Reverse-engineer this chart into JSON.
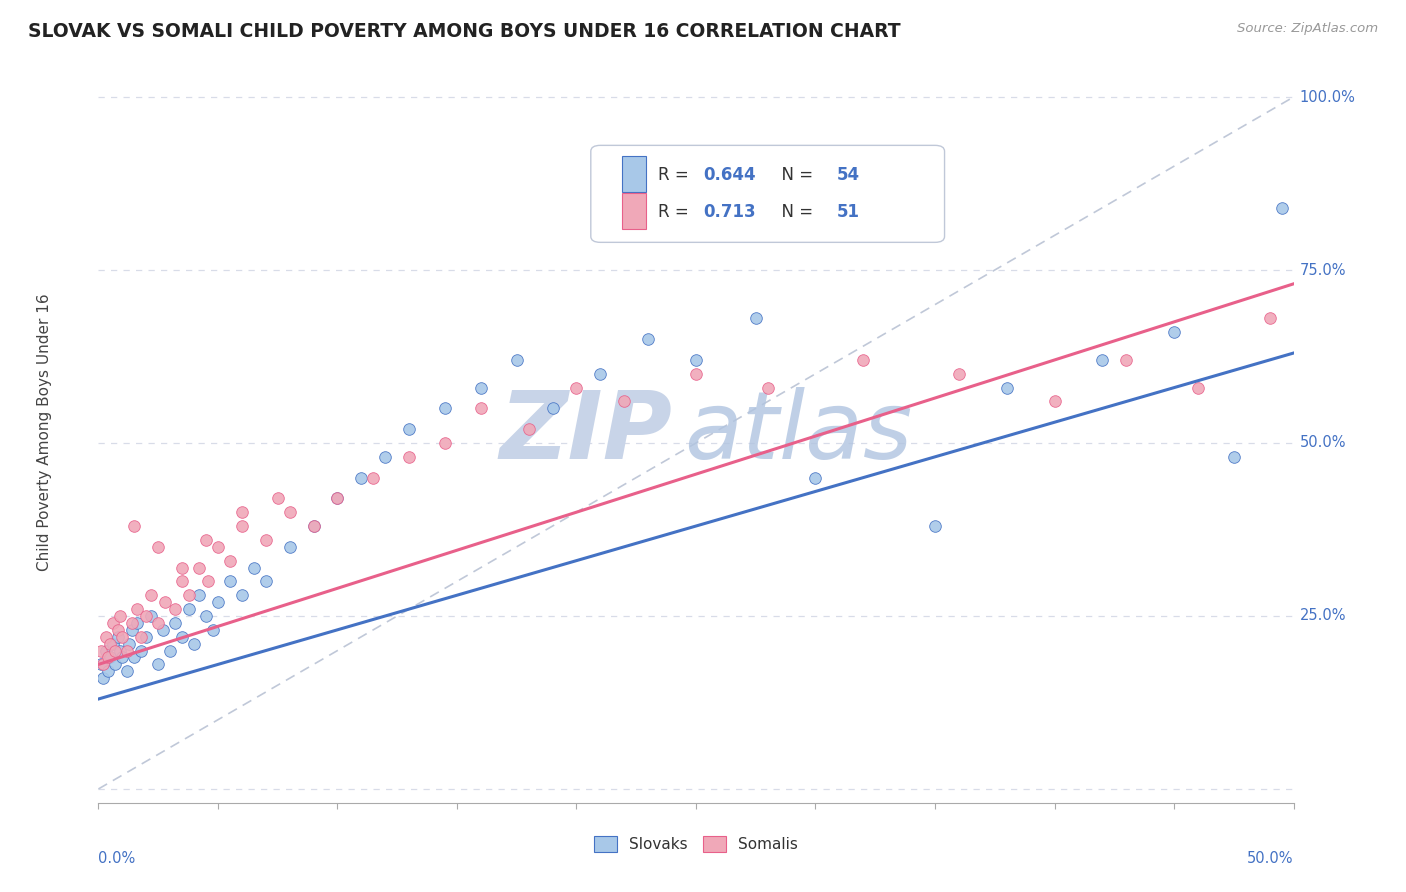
{
  "title": "SLOVAK VS SOMALI CHILD POVERTY AMONG BOYS UNDER 16 CORRELATION CHART",
  "source": "Source: ZipAtlas.com",
  "ylabel": "Child Poverty Among Boys Under 16",
  "xlim": [
    0.0,
    0.5
  ],
  "ylim": [
    -0.02,
    1.05
  ],
  "yticks": [
    0.0,
    0.25,
    0.5,
    0.75,
    1.0
  ],
  "ytick_labels": [
    "",
    "25.0%",
    "50.0%",
    "75.0%",
    "100.0%"
  ],
  "r1": "0.644",
  "n1": "54",
  "r2": "0.713",
  "n2": "51",
  "slovak_fill": "#a8c8e8",
  "somali_fill": "#f0a8b8",
  "line1_color": "#4472c4",
  "line2_color": "#e8608a",
  "diagonal_color": "#c0c8d8",
  "watermark_zip_color": "#c8d4e8",
  "watermark_atlas_color": "#b0c4e0",
  "tick_color": "#aaaaaa",
  "grid_color": "#d8dce8",
  "label_color": "#4472c4",
  "title_color": "#222222",
  "source_color": "#999999",
  "ylabel_color": "#444444",
  "sk_x": [
    0.001,
    0.002,
    0.003,
    0.004,
    0.005,
    0.006,
    0.007,
    0.008,
    0.009,
    0.01,
    0.012,
    0.013,
    0.014,
    0.015,
    0.016,
    0.018,
    0.02,
    0.022,
    0.025,
    0.027,
    0.03,
    0.032,
    0.035,
    0.038,
    0.04,
    0.042,
    0.045,
    0.048,
    0.05,
    0.055,
    0.06,
    0.065,
    0.07,
    0.08,
    0.09,
    0.1,
    0.11,
    0.12,
    0.13,
    0.145,
    0.16,
    0.175,
    0.19,
    0.21,
    0.23,
    0.25,
    0.275,
    0.3,
    0.35,
    0.38,
    0.42,
    0.45,
    0.475,
    0.495
  ],
  "sk_y": [
    0.18,
    0.16,
    0.2,
    0.17,
    0.19,
    0.21,
    0.18,
    0.22,
    0.2,
    0.19,
    0.17,
    0.21,
    0.23,
    0.19,
    0.24,
    0.2,
    0.22,
    0.25,
    0.18,
    0.23,
    0.2,
    0.24,
    0.22,
    0.26,
    0.21,
    0.28,
    0.25,
    0.23,
    0.27,
    0.3,
    0.28,
    0.32,
    0.3,
    0.35,
    0.38,
    0.42,
    0.45,
    0.48,
    0.52,
    0.55,
    0.58,
    0.62,
    0.55,
    0.6,
    0.65,
    0.62,
    0.68,
    0.45,
    0.38,
    0.58,
    0.62,
    0.66,
    0.48,
    0.84
  ],
  "so_x": [
    0.001,
    0.002,
    0.003,
    0.004,
    0.005,
    0.006,
    0.007,
    0.008,
    0.009,
    0.01,
    0.012,
    0.014,
    0.016,
    0.018,
    0.02,
    0.022,
    0.025,
    0.028,
    0.032,
    0.035,
    0.038,
    0.042,
    0.046,
    0.05,
    0.055,
    0.06,
    0.07,
    0.08,
    0.09,
    0.1,
    0.115,
    0.13,
    0.145,
    0.16,
    0.18,
    0.2,
    0.22,
    0.25,
    0.28,
    0.32,
    0.36,
    0.4,
    0.43,
    0.46,
    0.49,
    0.015,
    0.025,
    0.035,
    0.045,
    0.06,
    0.075
  ],
  "so_y": [
    0.2,
    0.18,
    0.22,
    0.19,
    0.21,
    0.24,
    0.2,
    0.23,
    0.25,
    0.22,
    0.2,
    0.24,
    0.26,
    0.22,
    0.25,
    0.28,
    0.24,
    0.27,
    0.26,
    0.3,
    0.28,
    0.32,
    0.3,
    0.35,
    0.33,
    0.38,
    0.36,
    0.4,
    0.38,
    0.42,
    0.45,
    0.48,
    0.5,
    0.55,
    0.52,
    0.58,
    0.56,
    0.6,
    0.58,
    0.62,
    0.6,
    0.56,
    0.62,
    0.58,
    0.68,
    0.38,
    0.35,
    0.32,
    0.36,
    0.4,
    0.42
  ]
}
